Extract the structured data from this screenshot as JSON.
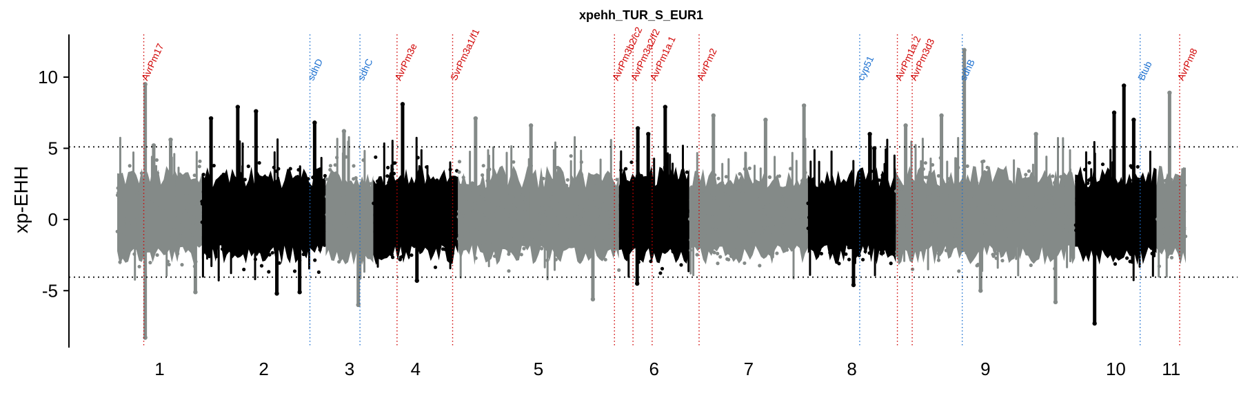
{
  "chart_data": {
    "type": "scatter",
    "title": "xpehh_TUR_S_EUR1",
    "xlabel": "",
    "ylabel": "xp-EHH",
    "ylim": [
      -9,
      13
    ],
    "yticks": [
      -5,
      0,
      5,
      10
    ],
    "thresholds": [
      5.1,
      -4.05
    ],
    "grid": false,
    "legend": "none",
    "colors": {
      "odd_chromosome": "#848a88",
      "even_chromosome": "#000000",
      "avr_gene": "#d00000",
      "fungicide_gene": "#1a6fd0"
    },
    "chromosomes": [
      {
        "label": "1",
        "start": 0,
        "end": 1300,
        "color": "#848a88"
      },
      {
        "label": "2",
        "start": 1300,
        "end": 3200,
        "color": "#000000"
      },
      {
        "label": "3",
        "start": 3200,
        "end": 3930,
        "color": "#848a88"
      },
      {
        "label": "4",
        "start": 3930,
        "end": 5230,
        "color": "#000000"
      },
      {
        "label": "5",
        "start": 5230,
        "end": 7700,
        "color": "#848a88"
      },
      {
        "label": "6",
        "start": 7700,
        "end": 8780,
        "color": "#000000"
      },
      {
        "label": "7",
        "start": 8780,
        "end": 10600,
        "color": "#848a88"
      },
      {
        "label": "8",
        "start": 10600,
        "end": 11950,
        "color": "#000000"
      },
      {
        "label": "9",
        "start": 11950,
        "end": 14700,
        "color": "#848a88"
      },
      {
        "label": "10",
        "start": 14700,
        "end": 15950,
        "color": "#000000"
      },
      {
        "label": "11",
        "start": 15950,
        "end": 16400,
        "color": "#848a88"
      }
    ],
    "peaks": [
      {
        "x": 430,
        "y": 9.5
      },
      {
        "x": 430,
        "y": -8.3
      },
      {
        "x": 560,
        "y": 5.2
      },
      {
        "x": 820,
        "y": 5.6
      },
      {
        "x": 1200,
        "y": -5.1
      },
      {
        "x": 1440,
        "y": 7.1
      },
      {
        "x": 1850,
        "y": 7.9
      },
      {
        "x": 2130,
        "y": 7.6
      },
      {
        "x": 2450,
        "y": -5.2
      },
      {
        "x": 2800,
        "y": -5.1
      },
      {
        "x": 3030,
        "y": 6.8
      },
      {
        "x": 3480,
        "y": 6.2
      },
      {
        "x": 3700,
        "y": -6.0
      },
      {
        "x": 4380,
        "y": 8.1
      },
      {
        "x": 4600,
        "y": -4.3
      },
      {
        "x": 5500,
        "y": 7.1
      },
      {
        "x": 6350,
        "y": 6.6
      },
      {
        "x": 7300,
        "y": -5.6
      },
      {
        "x": 7990,
        "y": 6.4
      },
      {
        "x": 7980,
        "y": -4.5
      },
      {
        "x": 8150,
        "y": 6.0
      },
      {
        "x": 8410,
        "y": 7.9
      },
      {
        "x": 9150,
        "y": 7.3
      },
      {
        "x": 9950,
        "y": 7.0
      },
      {
        "x": 10540,
        "y": 8.0
      },
      {
        "x": 11300,
        "y": -4.6
      },
      {
        "x": 11550,
        "y": 6.0
      },
      {
        "x": 11620,
        "y": 5.0
      },
      {
        "x": 12100,
        "y": 6.6
      },
      {
        "x": 12650,
        "y": 7.3
      },
      {
        "x": 13000,
        "y": 11.9
      },
      {
        "x": 13250,
        "y": -5.0
      },
      {
        "x": 14100,
        "y": 6.0
      },
      {
        "x": 14400,
        "y": -5.8
      },
      {
        "x": 15000,
        "y": -7.3
      },
      {
        "x": 15450,
        "y": 9.4
      },
      {
        "x": 15600,
        "y": 7.0
      },
      {
        "x": 16150,
        "y": 8.9
      },
      {
        "x": 15300,
        "y": 7.5
      }
    ],
    "genes": [
      {
        "name": "AvrPm17",
        "x": 430,
        "color": "#d00000"
      },
      {
        "name": "sdhD",
        "x": 3120,
        "color": "#1a6fd0"
      },
      {
        "name": "sdhC",
        "x": 3930,
        "color": "#1a6fd0"
      },
      {
        "name": "AvrPm3e",
        "x": 4530,
        "color": "#d00000"
      },
      {
        "name": "SvrPm3a1/f1",
        "x": 5430,
        "color": "#d00000"
      },
      {
        "name": "AvrPm3b2/c2",
        "x": 8050,
        "color": "#d00000"
      },
      {
        "name": "AvrPm3a2/f2",
        "x": 8350,
        "color": "#d00000"
      },
      {
        "name": "AvrPm1a.1",
        "x": 8660,
        "color": "#d00000"
      },
      {
        "name": "AvrPm2",
        "x": 9420,
        "color": "#d00000"
      },
      {
        "name": "cyp51",
        "x": 12020,
        "color": "#1a6fd0"
      },
      {
        "name": "AvrPm1a.2",
        "x": 12630,
        "color": "#d00000"
      },
      {
        "name": "AvrPm3d3",
        "x": 12870,
        "color": "#d00000"
      },
      {
        "name": "sdhB",
        "x": 13680,
        "color": "#1a6fd0"
      },
      {
        "name": "Btub",
        "x": 16560,
        "color": "#1a6fd0"
      },
      {
        "name": "AvrPm8",
        "x": 17200,
        "color": "#d00000"
      }
    ]
  }
}
